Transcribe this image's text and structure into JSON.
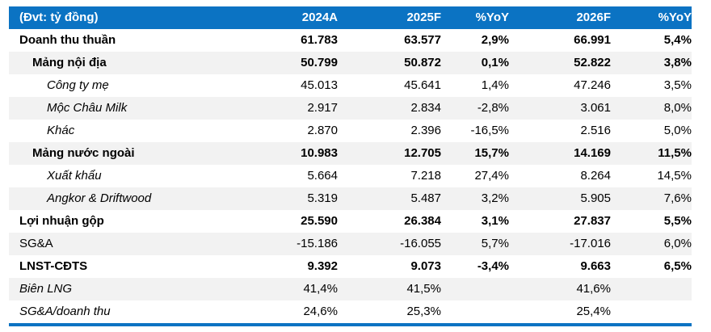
{
  "colors": {
    "header_bg": "#0b73c3",
    "header_text": "#ffffff",
    "stripe_bg": "#f2f2f2",
    "bottom_rule": "#0b73c3"
  },
  "chart_data": {
    "type": "table",
    "title": "(Đvt: tỷ đồng)",
    "corner_label": "(Đvt: tỷ đồng)",
    "columns": [
      "2024A",
      "2025F",
      "%YoY",
      "2026F",
      "%YoY"
    ],
    "rows": [
      {
        "label": "Doanh thu thuần",
        "style": "bold",
        "indent": 0,
        "stripe": false,
        "values": [
          "61.783",
          "63.577",
          "2,9%",
          "66.991",
          "5,4%"
        ]
      },
      {
        "label": "Mảng nội địa",
        "style": "bold",
        "indent": 1,
        "stripe": true,
        "values": [
          "50.799",
          "50.872",
          "0,1%",
          "52.822",
          "3,8%"
        ]
      },
      {
        "label": "Công ty mẹ",
        "style": "italic",
        "indent": 2,
        "stripe": false,
        "values": [
          "45.013",
          "45.641",
          "1,4%",
          "47.246",
          "3,5%"
        ]
      },
      {
        "label": "Mộc Châu Milk",
        "style": "italic",
        "indent": 2,
        "stripe": true,
        "values": [
          "2.917",
          "2.834",
          "-2,8%",
          "3.061",
          "8,0%"
        ]
      },
      {
        "label": "Khác",
        "style": "italic",
        "indent": 2,
        "stripe": false,
        "values": [
          "2.870",
          "2.396",
          "-16,5%",
          "2.516",
          "5,0%"
        ]
      },
      {
        "label": "Mảng nước ngoài",
        "style": "bold",
        "indent": 1,
        "stripe": true,
        "values": [
          "10.983",
          "12.705",
          "15,7%",
          "14.169",
          "11,5%"
        ]
      },
      {
        "label": "Xuất khẩu",
        "style": "italic",
        "indent": 2,
        "stripe": false,
        "values": [
          "5.664",
          "7.218",
          "27,4%",
          "8.264",
          "14,5%"
        ]
      },
      {
        "label": "Angkor & Driftwood",
        "style": "italic",
        "indent": 2,
        "stripe": true,
        "values": [
          "5.319",
          "5.487",
          "3,2%",
          "5.905",
          "7,6%"
        ]
      },
      {
        "label": "Lợi nhuận gộp",
        "style": "bold",
        "indent": 0,
        "stripe": false,
        "values": [
          "25.590",
          "26.384",
          "3,1%",
          "27.837",
          "5,5%"
        ]
      },
      {
        "label": "SG&A",
        "style": "plain",
        "indent": 0,
        "stripe": true,
        "values": [
          "-15.186",
          "-16.055",
          "5,7%",
          "-17.016",
          "6,0%"
        ]
      },
      {
        "label": "LNST-CĐTS",
        "style": "bold",
        "indent": 0,
        "stripe": false,
        "values": [
          "9.392",
          "9.073",
          "-3,4%",
          "9.663",
          "6,5%"
        ]
      },
      {
        "label": "Biên LNG",
        "style": "italic",
        "indent": 0,
        "stripe": true,
        "values": [
          "41,4%",
          "41,5%",
          "",
          "41,6%",
          ""
        ]
      },
      {
        "label": "SG&A/doanh thu",
        "style": "italic",
        "indent": 0,
        "stripe": false,
        "values": [
          "24,6%",
          "25,3%",
          "",
          "25,4%",
          ""
        ]
      }
    ]
  }
}
